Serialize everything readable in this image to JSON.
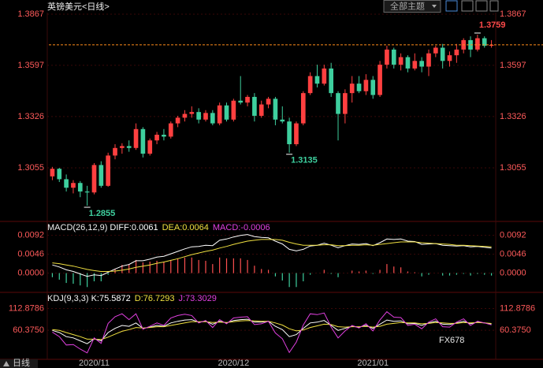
{
  "toolbar": {
    "theme_button": "全部主题"
  },
  "footer": {
    "period": "日线"
  },
  "watermark": "FX678",
  "chart_data": [
    {
      "type": "candlestick",
      "title": "英镑美元<日线>",
      "categories": [
        null,
        null,
        null,
        null,
        null,
        null,
        "2020/11",
        null,
        null,
        null,
        null,
        null,
        null,
        null,
        null,
        null,
        null,
        null,
        null,
        null,
        null,
        null,
        null,
        null,
        null,
        null,
        "2020/12",
        null,
        null,
        null,
        null,
        null,
        null,
        null,
        null,
        null,
        null,
        null,
        null,
        null,
        null,
        null,
        null,
        null,
        null,
        null,
        "2021/01",
        null,
        null,
        null,
        null,
        null,
        null,
        null,
        null,
        null,
        null,
        null,
        null,
        null,
        null,
        null,
        null,
        null
      ],
      "open": [
        1.301,
        1.305,
        1.2995,
        1.295,
        1.2975,
        1.293,
        1.2925,
        1.307,
        1.296,
        1.312,
        1.316,
        1.317,
        1.316,
        1.326,
        1.313,
        1.32,
        1.323,
        1.322,
        1.329,
        1.332,
        1.334,
        1.335,
        1.331,
        1.3345,
        1.329,
        1.3385,
        1.331,
        1.341,
        1.34,
        1.343,
        1.333,
        1.339,
        1.342,
        1.331,
        1.33,
        1.318,
        1.329,
        1.345,
        1.354,
        1.35,
        1.358,
        1.345,
        1.334,
        1.345,
        1.35,
        1.346,
        1.352,
        1.344,
        1.36,
        1.368,
        1.36,
        1.364,
        1.358,
        1.362,
        1.359,
        1.366,
        1.369,
        1.362,
        1.365,
        1.368,
        1.373,
        1.368,
        1.374,
        1.37
      ],
      "high": [
        1.306,
        1.3055,
        1.302,
        1.299,
        1.2985,
        1.296,
        1.308,
        1.309,
        1.3135,
        1.318,
        1.3185,
        1.32,
        1.329,
        1.327,
        1.321,
        1.3245,
        1.326,
        1.33,
        1.333,
        1.336,
        1.338,
        1.337,
        1.336,
        1.336,
        1.34,
        1.34,
        1.342,
        1.354,
        1.344,
        1.345,
        1.341,
        1.343,
        1.343,
        1.338,
        1.332,
        1.33,
        1.346,
        1.356,
        1.36,
        1.36,
        1.361,
        1.346,
        1.347,
        1.354,
        1.354,
        1.355,
        1.354,
        1.362,
        1.37,
        1.369,
        1.366,
        1.365,
        1.366,
        1.364,
        1.368,
        1.37,
        1.371,
        1.367,
        1.371,
        1.374,
        1.375,
        1.3759,
        1.375,
        1.373
      ],
      "low": [
        1.299,
        1.298,
        1.293,
        1.292,
        1.29,
        1.2855,
        1.2915,
        1.295,
        1.2955,
        1.31,
        1.313,
        1.314,
        1.315,
        1.311,
        1.312,
        1.318,
        1.32,
        1.321,
        1.327,
        1.33,
        1.332,
        1.329,
        1.33,
        1.328,
        1.328,
        1.33,
        1.33,
        1.339,
        1.338,
        1.33,
        1.332,
        1.337,
        1.328,
        1.329,
        1.3135,
        1.317,
        1.328,
        1.344,
        1.348,
        1.349,
        1.343,
        1.32,
        1.329,
        1.34,
        1.345,
        1.344,
        1.342,
        1.343,
        1.358,
        1.358,
        1.357,
        1.356,
        1.357,
        1.356,
        1.354,
        1.364,
        1.358,
        1.359,
        1.361,
        1.366,
        1.364,
        1.367,
        1.369,
        1.369
      ],
      "close": [
        1.305,
        1.2995,
        1.295,
        1.2975,
        1.293,
        1.2925,
        1.307,
        1.296,
        1.312,
        1.316,
        1.317,
        1.316,
        1.326,
        1.313,
        1.32,
        1.323,
        1.322,
        1.329,
        1.332,
        1.334,
        1.335,
        1.331,
        1.3345,
        1.329,
        1.3385,
        1.331,
        1.341,
        1.34,
        1.343,
        1.333,
        1.339,
        1.342,
        1.331,
        1.33,
        1.318,
        1.329,
        1.345,
        1.354,
        1.35,
        1.358,
        1.345,
        1.334,
        1.345,
        1.35,
        1.346,
        1.352,
        1.344,
        1.36,
        1.368,
        1.36,
        1.364,
        1.358,
        1.362,
        1.359,
        1.366,
        1.369,
        1.362,
        1.365,
        1.368,
        1.373,
        1.368,
        1.374,
        1.37,
        1.3705
      ],
      "up_color": "#ff4040",
      "down_color": "#3ecf9e",
      "last_price_color": "#ff8c1a",
      "ylim": [
        1.2776,
        1.3942
      ],
      "yticks": [
        1.3055,
        1.3326,
        1.3597,
        1.3867
      ],
      "grid": true,
      "annotations": [
        {
          "text": "1.3759",
          "index": 61,
          "anchor": "high",
          "color": "#ff4a4a"
        },
        {
          "text": "1.3135",
          "index": 34,
          "anchor": "low",
          "color": "#3ecf9e"
        },
        {
          "text": "1.2855",
          "index": 5,
          "anchor": "low",
          "color": "#3ecf9e"
        }
      ]
    },
    {
      "type": "macd",
      "title": "MACD(26,12,9)",
      "legend": [
        {
          "text": "DIFF:0.0061",
          "color": "#ffffff"
        },
        {
          "text": "DEA:0.0064",
          "color": "#f0e040"
        },
        {
          "text": "MACD:-0.0006",
          "color": "#e040e0"
        }
      ],
      "series": [
        {
          "color": "#ffffff",
          "values": [
            0.002,
            0.0015,
            0.0008,
            0.0004,
            -0.0002,
            -0.0008,
            -0.0004,
            -0.0006,
            0.0002,
            0.001,
            0.0017,
            0.0021,
            0.003,
            0.003,
            0.0034,
            0.0039,
            0.0041,
            0.0047,
            0.0053,
            0.0059,
            0.0064,
            0.0065,
            0.0068,
            0.0067,
            0.008,
            0.0083,
            0.0088,
            0.0092,
            0.0094,
            0.0089,
            0.0087,
            0.0086,
            0.0078,
            0.0071,
            0.0058,
            0.0054,
            0.0058,
            0.0066,
            0.0068,
            0.0073,
            0.0068,
            0.0062,
            0.0067,
            0.0071,
            0.007,
            0.0072,
            0.0067,
            0.0074,
            0.0083,
            0.0082,
            0.0083,
            0.0078,
            0.0077,
            0.007,
            0.0071,
            0.0072,
            0.0068,
            0.0067,
            0.0066,
            0.0067,
            0.0064,
            0.0065,
            0.0063,
            0.0061
          ]
        },
        {
          "color": "#f0e040",
          "values": [
            0.0025,
            0.0023,
            0.002,
            0.0017,
            0.0013,
            0.0009,
            0.0006,
            0.0004,
            0.0004,
            0.0005,
            0.0007,
            0.001,
            0.0014,
            0.0017,
            0.002,
            0.0024,
            0.0027,
            0.0031,
            0.0035,
            0.004,
            0.0045,
            0.0049,
            0.0053,
            0.0056,
            0.0061,
            0.0065,
            0.007,
            0.0074,
            0.0078,
            0.008,
            0.0082,
            0.0082,
            0.0082,
            0.008,
            0.0075,
            0.0071,
            0.0068,
            0.0068,
            0.0068,
            0.0069,
            0.0069,
            0.0067,
            0.0067,
            0.0068,
            0.0068,
            0.0069,
            0.0068,
            0.007,
            0.0072,
            0.0074,
            0.0076,
            0.0076,
            0.0076,
            0.0074,
            0.0073,
            0.0072,
            0.0071,
            0.007,
            0.0068,
            0.0068,
            0.0067,
            0.0066,
            0.0065,
            0.0064
          ]
        }
      ],
      "histogram": {
        "up_color": "#ff5050",
        "down_color": "#3ecf9e",
        "values": [
          -0.001,
          -0.0016,
          -0.0024,
          -0.0026,
          -0.003,
          -0.0034,
          -0.002,
          -0.002,
          -0.0004,
          0.001,
          0.002,
          0.0022,
          0.0032,
          0.0026,
          0.0028,
          0.003,
          0.0028,
          0.0032,
          0.0036,
          0.0038,
          0.0038,
          0.0032,
          0.003,
          0.0022,
          0.0038,
          0.0036,
          0.0036,
          0.0036,
          0.0032,
          0.0018,
          0.001,
          0.0008,
          -0.0008,
          -0.0018,
          -0.0034,
          -0.0034,
          -0.002,
          -0.0004,
          0.0,
          0.0008,
          -0.0002,
          -0.001,
          0.0,
          0.0006,
          0.0004,
          0.0006,
          -0.0002,
          0.0008,
          0.0022,
          0.0016,
          0.0014,
          0.0004,
          0.0002,
          -0.0008,
          -0.0004,
          0.0,
          -0.0006,
          -0.0006,
          -0.0004,
          -0.0002,
          -0.0006,
          -0.0002,
          -0.0004,
          -0.0006
        ]
      },
      "ylim": [
        -0.0045,
        0.0124
      ],
      "yticks": [
        {
          "value": 0,
          "label": "0.0000"
        },
        0.0046,
        0.0092
      ]
    },
    {
      "type": "kdj",
      "title": "KDJ(9,3,3)",
      "legend": [
        {
          "text": "K:75.5872",
          "color": "#ffffff"
        },
        {
          "text": "D:76.7293",
          "color": "#f0e040"
        },
        {
          "text": "J:73.3029",
          "color": "#e040e0"
        }
      ],
      "series": [
        {
          "color": "#ffffff",
          "values": [
            60,
            55,
            45,
            42,
            35,
            28,
            40,
            35,
            55,
            65,
            72,
            70,
            78,
            65,
            68,
            72,
            70,
            78,
            82,
            85,
            86,
            80,
            82,
            75,
            82,
            78,
            84,
            86,
            87,
            80,
            80,
            82,
            70,
            62,
            45,
            50,
            65,
            78,
            80,
            84,
            72,
            60,
            65,
            70,
            68,
            72,
            65,
            75,
            85,
            82,
            83,
            76,
            77,
            72,
            78,
            82,
            75,
            74,
            78,
            82,
            76,
            80,
            78,
            75.5872
          ]
        },
        {
          "color": "#f0e040",
          "values": [
            62,
            60,
            55,
            50,
            45,
            39,
            39,
            38,
            44,
            51,
            58,
            62,
            67,
            66,
            67,
            69,
            69,
            72,
            75,
            78,
            81,
            81,
            81,
            79,
            80,
            79,
            81,
            83,
            84,
            83,
            82,
            82,
            78,
            73,
            64,
            59,
            61,
            67,
            71,
            75,
            74,
            69,
            68,
            69,
            69,
            70,
            68,
            70,
            75,
            77,
            79,
            78,
            78,
            76,
            77,
            79,
            78,
            77,
            77,
            79,
            78,
            79,
            78,
            76.7293
          ]
        },
        {
          "color": "#e040e0",
          "values": [
            56,
            45,
            25,
            26,
            15,
            6,
            42,
            29,
            77,
            93,
            100,
            86,
            100,
            63,
            70,
            78,
            72,
            90,
            96,
            99,
            96,
            78,
            84,
            67,
            86,
            76,
            90,
            92,
            93,
            74,
            76,
            82,
            54,
            40,
            7,
            32,
            73,
            100,
            98,
            102,
            68,
            42,
            59,
            72,
            66,
            76,
            59,
            85,
            105,
            92,
            91,
            72,
            75,
            64,
            80,
            88,
            69,
            68,
            80,
            88,
            72,
            82,
            78,
            73.3029
          ]
        }
      ],
      "ylim": [
        -7.7,
        149.8
      ],
      "yticks": [
        {
          "value": 60.375,
          "label": "60.3750"
        },
        112.8786
      ]
    }
  ]
}
